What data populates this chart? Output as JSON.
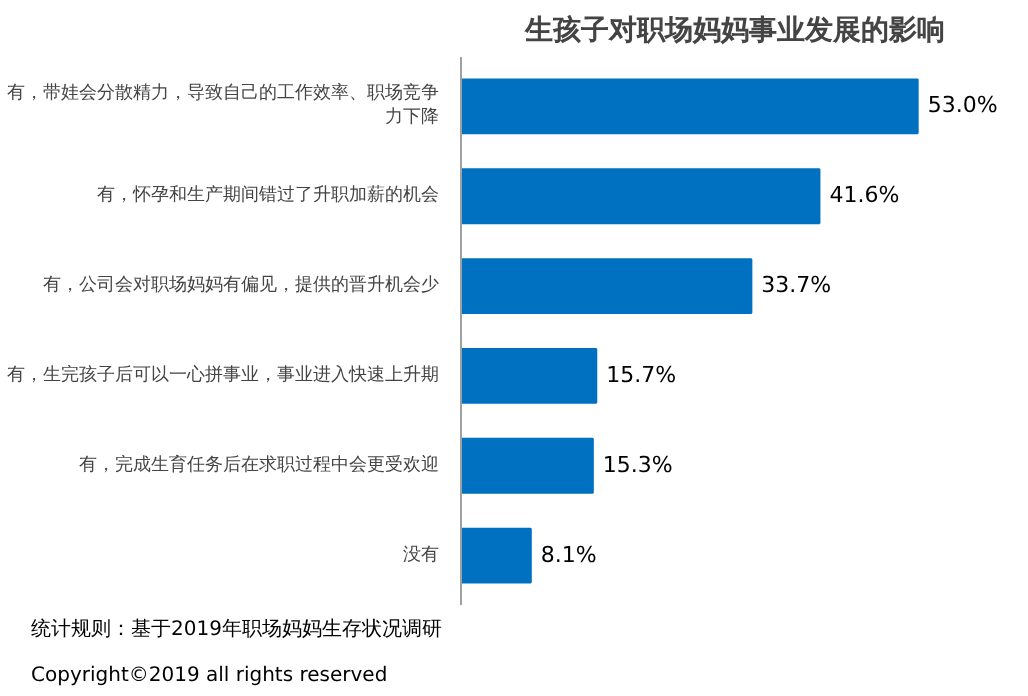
{
  "chart_data": {
    "type": "bar",
    "orientation": "horizontal",
    "title": "生孩子对职场妈妈事业发展的影响",
    "categories": [
      "有，带娃会分散精力，导致自己的工作效率、职场竞争力下降",
      "有，怀孕和生产期间错过了升职加薪的机会",
      "有，公司会对职场妈妈有偏见，提供的晋升机会少",
      "有，生完孩子后可以一心拼事业，事业进入快速上升期",
      "有，完成生育任务后在求职过程中会更受欢迎",
      "没有"
    ],
    "values": [
      53.0,
      41.6,
      33.7,
      15.7,
      15.3,
      8.1
    ],
    "value_labels": [
      "53.0%",
      "41.6%",
      "33.7%",
      "15.7%",
      "15.3%",
      "8.1%"
    ],
    "color": "#0070c0",
    "grid": false,
    "annotations": [
      "统计规则：基于2019年职场妈妈生存状况调研",
      "Copyright©2019 all rights reserved"
    ]
  }
}
